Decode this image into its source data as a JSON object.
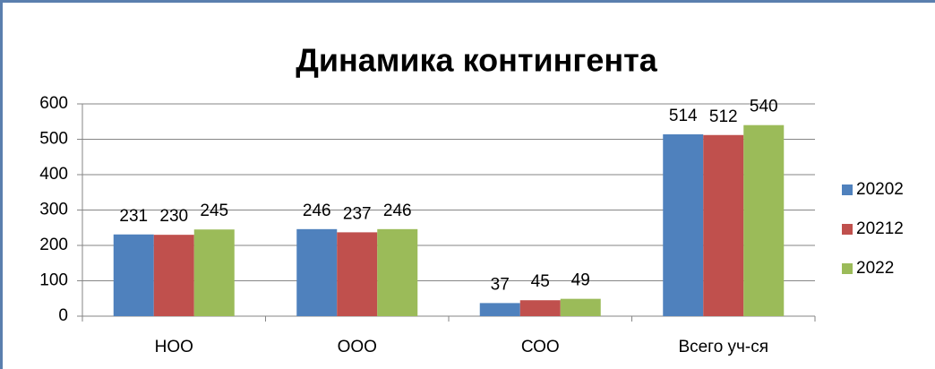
{
  "chart_data": {
    "type": "bar",
    "title": "Динамика контингента",
    "categories": [
      "НОО",
      "ООО",
      "СОО",
      "Всего уч-ся"
    ],
    "series": [
      {
        "name": "20202",
        "color": "#4f81bd",
        "values": [
          231,
          246,
          37,
          514
        ]
      },
      {
        "name": "20212",
        "color": "#c0504d",
        "values": [
          230,
          237,
          45,
          512
        ]
      },
      {
        "name": "2022",
        "color": "#9bbb59",
        "values": [
          245,
          246,
          49,
          540
        ]
      }
    ],
    "ylim": [
      0,
      600
    ],
    "yticks": [
      0,
      100,
      200,
      300,
      400,
      500,
      600
    ],
    "grid": true,
    "legend": "right"
  }
}
